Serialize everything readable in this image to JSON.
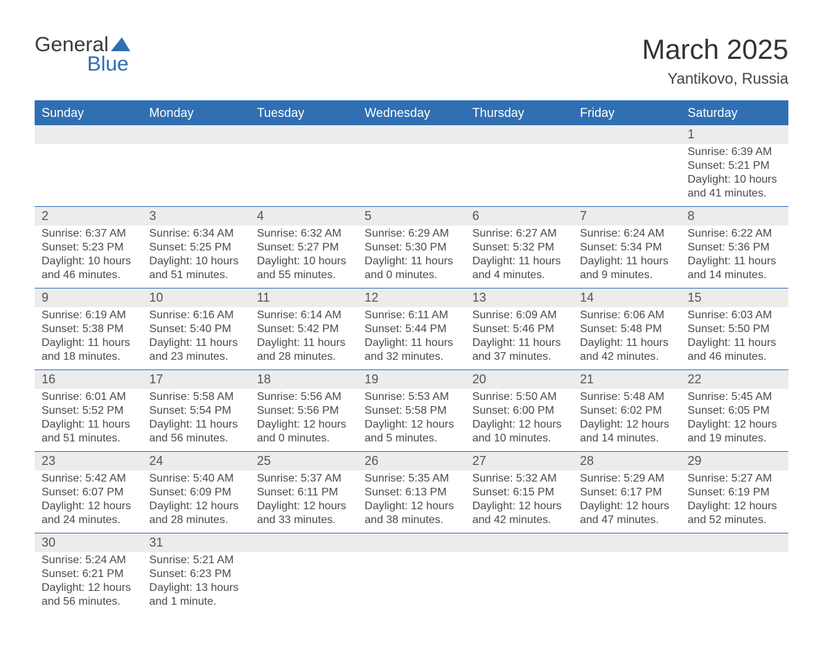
{
  "logo": {
    "word1": "General",
    "word2": "Blue"
  },
  "title": "March 2025",
  "location": "Yantikovo, Russia",
  "header_bg": "#2f6fb2",
  "header_text": "#ffffff",
  "row_divider": "#2f6fb2",
  "daynum_bg": "#ececec",
  "body_text": "#4a4a4a",
  "days": [
    "Sunday",
    "Monday",
    "Tuesday",
    "Wednesday",
    "Thursday",
    "Friday",
    "Saturday"
  ],
  "weeks": [
    {
      "nums": [
        "",
        "",
        "",
        "",
        "",
        "",
        "1"
      ],
      "cells": [
        null,
        null,
        null,
        null,
        null,
        null,
        {
          "sunrise": "Sunrise: 6:39 AM",
          "sunset": "Sunset: 5:21 PM",
          "dl1": "Daylight: 10 hours",
          "dl2": "and 41 minutes."
        }
      ]
    },
    {
      "nums": [
        "2",
        "3",
        "4",
        "5",
        "6",
        "7",
        "8"
      ],
      "cells": [
        {
          "sunrise": "Sunrise: 6:37 AM",
          "sunset": "Sunset: 5:23 PM",
          "dl1": "Daylight: 10 hours",
          "dl2": "and 46 minutes."
        },
        {
          "sunrise": "Sunrise: 6:34 AM",
          "sunset": "Sunset: 5:25 PM",
          "dl1": "Daylight: 10 hours",
          "dl2": "and 51 minutes."
        },
        {
          "sunrise": "Sunrise: 6:32 AM",
          "sunset": "Sunset: 5:27 PM",
          "dl1": "Daylight: 10 hours",
          "dl2": "and 55 minutes."
        },
        {
          "sunrise": "Sunrise: 6:29 AM",
          "sunset": "Sunset: 5:30 PM",
          "dl1": "Daylight: 11 hours",
          "dl2": "and 0 minutes."
        },
        {
          "sunrise": "Sunrise: 6:27 AM",
          "sunset": "Sunset: 5:32 PM",
          "dl1": "Daylight: 11 hours",
          "dl2": "and 4 minutes."
        },
        {
          "sunrise": "Sunrise: 6:24 AM",
          "sunset": "Sunset: 5:34 PM",
          "dl1": "Daylight: 11 hours",
          "dl2": "and 9 minutes."
        },
        {
          "sunrise": "Sunrise: 6:22 AM",
          "sunset": "Sunset: 5:36 PM",
          "dl1": "Daylight: 11 hours",
          "dl2": "and 14 minutes."
        }
      ]
    },
    {
      "nums": [
        "9",
        "10",
        "11",
        "12",
        "13",
        "14",
        "15"
      ],
      "cells": [
        {
          "sunrise": "Sunrise: 6:19 AM",
          "sunset": "Sunset: 5:38 PM",
          "dl1": "Daylight: 11 hours",
          "dl2": "and 18 minutes."
        },
        {
          "sunrise": "Sunrise: 6:16 AM",
          "sunset": "Sunset: 5:40 PM",
          "dl1": "Daylight: 11 hours",
          "dl2": "and 23 minutes."
        },
        {
          "sunrise": "Sunrise: 6:14 AM",
          "sunset": "Sunset: 5:42 PM",
          "dl1": "Daylight: 11 hours",
          "dl2": "and 28 minutes."
        },
        {
          "sunrise": "Sunrise: 6:11 AM",
          "sunset": "Sunset: 5:44 PM",
          "dl1": "Daylight: 11 hours",
          "dl2": "and 32 minutes."
        },
        {
          "sunrise": "Sunrise: 6:09 AM",
          "sunset": "Sunset: 5:46 PM",
          "dl1": "Daylight: 11 hours",
          "dl2": "and 37 minutes."
        },
        {
          "sunrise": "Sunrise: 6:06 AM",
          "sunset": "Sunset: 5:48 PM",
          "dl1": "Daylight: 11 hours",
          "dl2": "and 42 minutes."
        },
        {
          "sunrise": "Sunrise: 6:03 AM",
          "sunset": "Sunset: 5:50 PM",
          "dl1": "Daylight: 11 hours",
          "dl2": "and 46 minutes."
        }
      ]
    },
    {
      "nums": [
        "16",
        "17",
        "18",
        "19",
        "20",
        "21",
        "22"
      ],
      "cells": [
        {
          "sunrise": "Sunrise: 6:01 AM",
          "sunset": "Sunset: 5:52 PM",
          "dl1": "Daylight: 11 hours",
          "dl2": "and 51 minutes."
        },
        {
          "sunrise": "Sunrise: 5:58 AM",
          "sunset": "Sunset: 5:54 PM",
          "dl1": "Daylight: 11 hours",
          "dl2": "and 56 minutes."
        },
        {
          "sunrise": "Sunrise: 5:56 AM",
          "sunset": "Sunset: 5:56 PM",
          "dl1": "Daylight: 12 hours",
          "dl2": "and 0 minutes."
        },
        {
          "sunrise": "Sunrise: 5:53 AM",
          "sunset": "Sunset: 5:58 PM",
          "dl1": "Daylight: 12 hours",
          "dl2": "and 5 minutes."
        },
        {
          "sunrise": "Sunrise: 5:50 AM",
          "sunset": "Sunset: 6:00 PM",
          "dl1": "Daylight: 12 hours",
          "dl2": "and 10 minutes."
        },
        {
          "sunrise": "Sunrise: 5:48 AM",
          "sunset": "Sunset: 6:02 PM",
          "dl1": "Daylight: 12 hours",
          "dl2": "and 14 minutes."
        },
        {
          "sunrise": "Sunrise: 5:45 AM",
          "sunset": "Sunset: 6:05 PM",
          "dl1": "Daylight: 12 hours",
          "dl2": "and 19 minutes."
        }
      ]
    },
    {
      "nums": [
        "23",
        "24",
        "25",
        "26",
        "27",
        "28",
        "29"
      ],
      "cells": [
        {
          "sunrise": "Sunrise: 5:42 AM",
          "sunset": "Sunset: 6:07 PM",
          "dl1": "Daylight: 12 hours",
          "dl2": "and 24 minutes."
        },
        {
          "sunrise": "Sunrise: 5:40 AM",
          "sunset": "Sunset: 6:09 PM",
          "dl1": "Daylight: 12 hours",
          "dl2": "and 28 minutes."
        },
        {
          "sunrise": "Sunrise: 5:37 AM",
          "sunset": "Sunset: 6:11 PM",
          "dl1": "Daylight: 12 hours",
          "dl2": "and 33 minutes."
        },
        {
          "sunrise": "Sunrise: 5:35 AM",
          "sunset": "Sunset: 6:13 PM",
          "dl1": "Daylight: 12 hours",
          "dl2": "and 38 minutes."
        },
        {
          "sunrise": "Sunrise: 5:32 AM",
          "sunset": "Sunset: 6:15 PM",
          "dl1": "Daylight: 12 hours",
          "dl2": "and 42 minutes."
        },
        {
          "sunrise": "Sunrise: 5:29 AM",
          "sunset": "Sunset: 6:17 PM",
          "dl1": "Daylight: 12 hours",
          "dl2": "and 47 minutes."
        },
        {
          "sunrise": "Sunrise: 5:27 AM",
          "sunset": "Sunset: 6:19 PM",
          "dl1": "Daylight: 12 hours",
          "dl2": "and 52 minutes."
        }
      ]
    },
    {
      "nums": [
        "30",
        "31",
        "",
        "",
        "",
        "",
        ""
      ],
      "cells": [
        {
          "sunrise": "Sunrise: 5:24 AM",
          "sunset": "Sunset: 6:21 PM",
          "dl1": "Daylight: 12 hours",
          "dl2": "and 56 minutes."
        },
        {
          "sunrise": "Sunrise: 5:21 AM",
          "sunset": "Sunset: 6:23 PM",
          "dl1": "Daylight: 13 hours",
          "dl2": "and 1 minute."
        },
        null,
        null,
        null,
        null,
        null
      ]
    }
  ]
}
